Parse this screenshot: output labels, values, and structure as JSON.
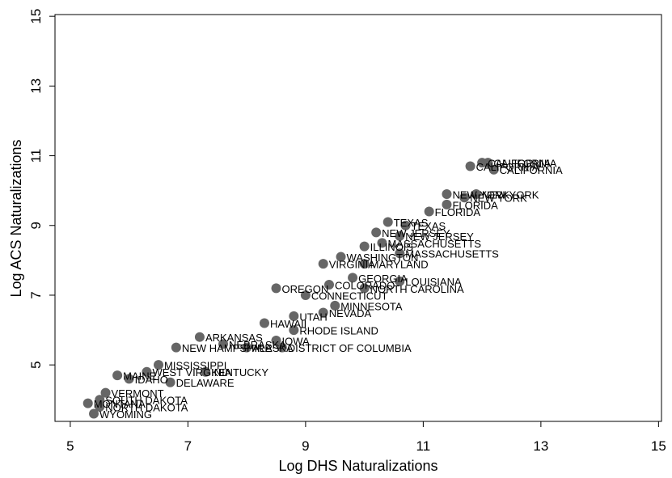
{
  "chart_data": {
    "type": "scatter",
    "x_label": "Log DHS Naturalizations",
    "y_label": "Log ACS Naturalizations",
    "color": "#666666",
    "xlim": [
      4.74,
      15.05
    ],
    "xticks": [
      5,
      7,
      9,
      11,
      13,
      15
    ],
    "ylim": [
      3.38,
      15.05
    ],
    "yticks": [
      5,
      7,
      9,
      11,
      13,
      15
    ],
    "x": [
      11.8,
      12.0,
      12.2,
      12.1,
      11.4,
      11.7,
      11.9,
      11.1,
      11.4,
      10.4,
      10.7,
      10.2,
      10.6,
      10.0,
      10.3,
      10.6,
      9.3,
      9.6,
      10.0,
      9.8,
      10.0,
      10.6,
      9.4,
      8.5,
      9.0,
      9.5,
      9.3,
      8.8,
      8.3,
      8.8,
      8.5,
      8.6,
      7.6,
      8.0,
      7.2,
      6.8,
      6.5,
      6.3,
      5.8,
      6.0,
      5.6,
      5.5,
      5.5,
      5.3,
      5.4,
      6.7,
      7.3
    ],
    "values": [
      10.7,
      10.8,
      10.6,
      10.8,
      9.9,
      9.8,
      9.9,
      9.4,
      9.6,
      9.1,
      9.0,
      8.8,
      8.7,
      8.4,
      8.5,
      8.2,
      7.9,
      8.1,
      7.9,
      7.5,
      7.2,
      7.4,
      7.3,
      7.2,
      7.0,
      6.7,
      6.5,
      6.4,
      6.2,
      6.0,
      5.7,
      5.5,
      5.6,
      5.5,
      5.8,
      5.5,
      5.0,
      4.8,
      4.7,
      4.6,
      4.2,
      4.0,
      3.8,
      3.9,
      3.6,
      4.5,
      4.8
    ],
    "point_labels": [
      "CALIFORNIA",
      "CALIFORNIA",
      "CALIFORNIA",
      "CALIFORNIA",
      "NEW YORK",
      "NEW YORK",
      "NEW YORK",
      "FLORIDA",
      "FLORIDA",
      "TEXAS",
      "TEXAS",
      "NEW JERSEY",
      "NEW JERSEY",
      "ILLINOIS",
      "MASSACHUSETTS",
      "MASSACHUSETTS",
      "VIRGINIA",
      "WASHINGTON",
      "MARYLAND",
      "GEORGIA",
      "NORTH CAROLINA",
      "LOUISIANA",
      "COLORADO",
      "OREGON",
      "CONNECTICUT",
      "MINNESOTA",
      "NEVADA",
      "UTAH",
      "HAWAII",
      "RHODE ISLAND",
      "IOWA",
      "DISTRICT OF COLUMBIA",
      "NEBRASKA",
      "ALASKA",
      "ARKANSAS",
      "NEW HAMPSHIRE",
      "MISSISSIPPI",
      "WEST VIRGINIA",
      "MAINE",
      "IDAHO",
      "VERMONT",
      "SOUTH DAKOTA",
      "NORTH DAKOTA",
      "MONTANA",
      "WYOMING",
      "DELAWARE",
      "KENTUCKY"
    ]
  }
}
